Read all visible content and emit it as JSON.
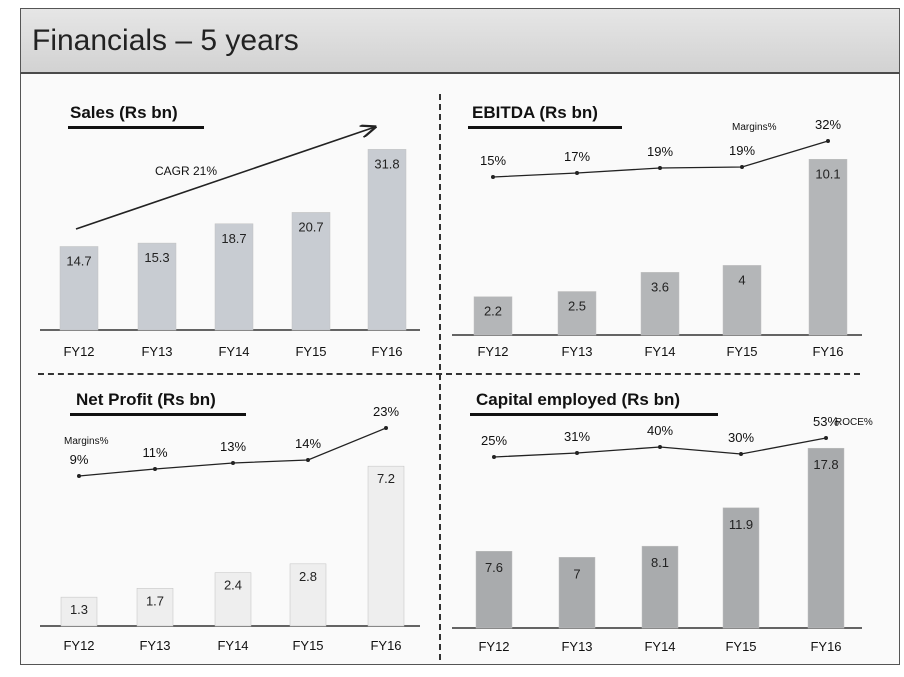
{
  "page": {
    "title": "Financials – 5 years"
  },
  "chart_data": [
    {
      "type": "bar",
      "title": "Sales (Rs bn)",
      "categories": [
        "FY12",
        "FY13",
        "FY14",
        "FY15",
        "FY16"
      ],
      "values": [
        14.7,
        15.3,
        18.7,
        20.7,
        31.8
      ],
      "annotation": "CAGR 21%",
      "colors": {
        "bar": "#c8ccd2"
      }
    },
    {
      "type": "bar",
      "title": "EBITDA (Rs bn)",
      "categories": [
        "FY12",
        "FY13",
        "FY14",
        "FY15",
        "FY16"
      ],
      "values": [
        2.2,
        2.5,
        3.6,
        4.0,
        10.1
      ],
      "line_label": "Margins%",
      "line_values": [
        "15%",
        "17%",
        "19%",
        "19%",
        "32%"
      ],
      "colors": {
        "bar": "#b4b6b8"
      }
    },
    {
      "type": "bar",
      "title": "Net Profit (Rs bn)",
      "categories": [
        "FY12",
        "FY13",
        "FY14",
        "FY15",
        "FY16"
      ],
      "values": [
        1.3,
        1.7,
        2.4,
        2.8,
        7.2
      ],
      "line_label": "Margins%",
      "line_values": [
        "9%",
        "11%",
        "13%",
        "14%",
        "23%"
      ],
      "colors": {
        "bar": "#eeeeee"
      }
    },
    {
      "type": "bar",
      "title": "Capital employed (Rs bn)",
      "categories": [
        "FY12",
        "FY13",
        "FY14",
        "FY15",
        "FY16"
      ],
      "values": [
        7.6,
        7.0,
        8.1,
        11.9,
        17.8
      ],
      "line_label": "ROCE%",
      "line_values": [
        "25%",
        "31%",
        "40%",
        "30%",
        "53%"
      ],
      "colors": {
        "bar": "#a9abad"
      }
    }
  ]
}
